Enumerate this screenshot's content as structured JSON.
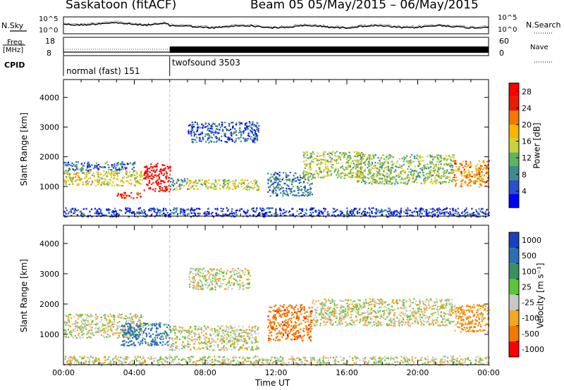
{
  "header": {
    "station": "Saskatoon (fitACF)",
    "beam_info": "Beam 05  05/May/2015 – 06/May/2015"
  },
  "aux": {
    "nsky_label": "N.Sky",
    "nsearch_label": "N.Search",
    "noise_ticks": [
      "10^5",
      "10^0"
    ],
    "freq_label": "Freq.",
    "freq_unit": "[MHz]",
    "freq_ticks": [
      "18",
      "8"
    ],
    "nave_label": "Nave",
    "nave_ticks": [
      "60",
      "0"
    ],
    "cpid_label": "CPID",
    "programs": [
      {
        "name": "normal (fast) 151",
        "start_h": 0
      },
      {
        "name": "twofsound 3503",
        "start_h": 6
      }
    ]
  },
  "chart_data": [
    {
      "type": "heatmap",
      "title": "",
      "xlabel": "",
      "ylabel": "Slant Range [km]",
      "x_range_hours": [
        0,
        24
      ],
      "ylim": [
        0,
        4600
      ],
      "y_ticks": [
        1000,
        2000,
        3000,
        4000
      ],
      "colorbar": {
        "label": "Power [dB]",
        "ticks": [
          4,
          8,
          12,
          16,
          20,
          24,
          28
        ],
        "range": [
          0,
          30
        ],
        "colors": [
          "#0000ff",
          "#2a4fc8",
          "#3f8a8a",
          "#5fb35f",
          "#c8d23c",
          "#f5b800",
          "#f07a00",
          "#e81c00",
          "#ff0000"
        ]
      },
      "scatter_regions": [
        {
          "t0": 0.0,
          "t1": 4.5,
          "r0": 1050,
          "r1": 1550,
          "value": 16
        },
        {
          "t0": 0.0,
          "t1": 4.0,
          "r0": 1550,
          "r1": 1850,
          "value": 7
        },
        {
          "t0": 3.0,
          "t1": 4.4,
          "r0": 620,
          "r1": 820,
          "value": 26
        },
        {
          "t0": 4.5,
          "t1": 6.0,
          "r0": 850,
          "r1": 1800,
          "value": 28
        },
        {
          "t0": 6.0,
          "t1": 7.0,
          "r0": 900,
          "r1": 1300,
          "value": 10
        },
        {
          "t0": 7.0,
          "t1": 11.0,
          "r0": 900,
          "r1": 1250,
          "value": 14
        },
        {
          "t0": 7.0,
          "t1": 11.0,
          "r0": 2500,
          "r1": 3200,
          "value": 6
        },
        {
          "t0": 11.5,
          "t1": 14.0,
          "r0": 700,
          "r1": 1500,
          "value": 8
        },
        {
          "t0": 13.5,
          "t1": 17.0,
          "r0": 1300,
          "r1": 2200,
          "value": 14
        },
        {
          "t0": 16.5,
          "t1": 22.0,
          "r0": 1100,
          "r1": 2100,
          "value": 13
        },
        {
          "t0": 22.0,
          "t1": 24.0,
          "r0": 1000,
          "r1": 1900,
          "value": 20
        },
        {
          "t0": 0.0,
          "t1": 24.0,
          "r0": 0,
          "r1": 300,
          "value": 4
        }
      ]
    },
    {
      "type": "heatmap",
      "title": "",
      "xlabel": "Time UT",
      "ylabel": "Slant Range [km]",
      "x_range_hours": [
        0,
        24
      ],
      "x_ticks": [
        "00:00",
        "04:00",
        "08:00",
        "12:00",
        "16:00",
        "20:00",
        "00:00"
      ],
      "ylim": [
        0,
        4600
      ],
      "y_ticks": [
        1000,
        2000,
        3000,
        4000
      ],
      "colorbar": {
        "label": "Velocity [m s⁻¹]",
        "ticks": [
          1000,
          500,
          100,
          25,
          -25,
          -100,
          -500,
          -1000
        ],
        "colors": [
          "#1a3fbf",
          "#2e6eb0",
          "#3a8f5f",
          "#5fc437",
          "#c8c8c8",
          "#f5a623",
          "#f07a00",
          "#ff0000"
        ]
      },
      "scatter_regions": [
        {
          "t0": 0.0,
          "t1": 4.5,
          "r0": 900,
          "r1": 1700,
          "value": 0
        },
        {
          "t0": 3.2,
          "t1": 6.0,
          "r0": 650,
          "r1": 1400,
          "value": 150
        },
        {
          "t0": 6.0,
          "t1": 11.0,
          "r0": 500,
          "r1": 1300,
          "value": 0
        },
        {
          "t0": 7.0,
          "t1": 10.5,
          "r0": 2500,
          "r1": 3200,
          "value": 0
        },
        {
          "t0": 11.5,
          "t1": 14.0,
          "r0": 800,
          "r1": 2000,
          "value": -450
        },
        {
          "t0": 14.0,
          "t1": 22.0,
          "r0": 1300,
          "r1": 2200,
          "value": 0
        },
        {
          "t0": 22.0,
          "t1": 24.0,
          "r0": 1100,
          "r1": 2000,
          "value": -100
        },
        {
          "t0": 0.0,
          "t1": 24.0,
          "r0": 0,
          "r1": 300,
          "value": 0
        }
      ]
    }
  ]
}
